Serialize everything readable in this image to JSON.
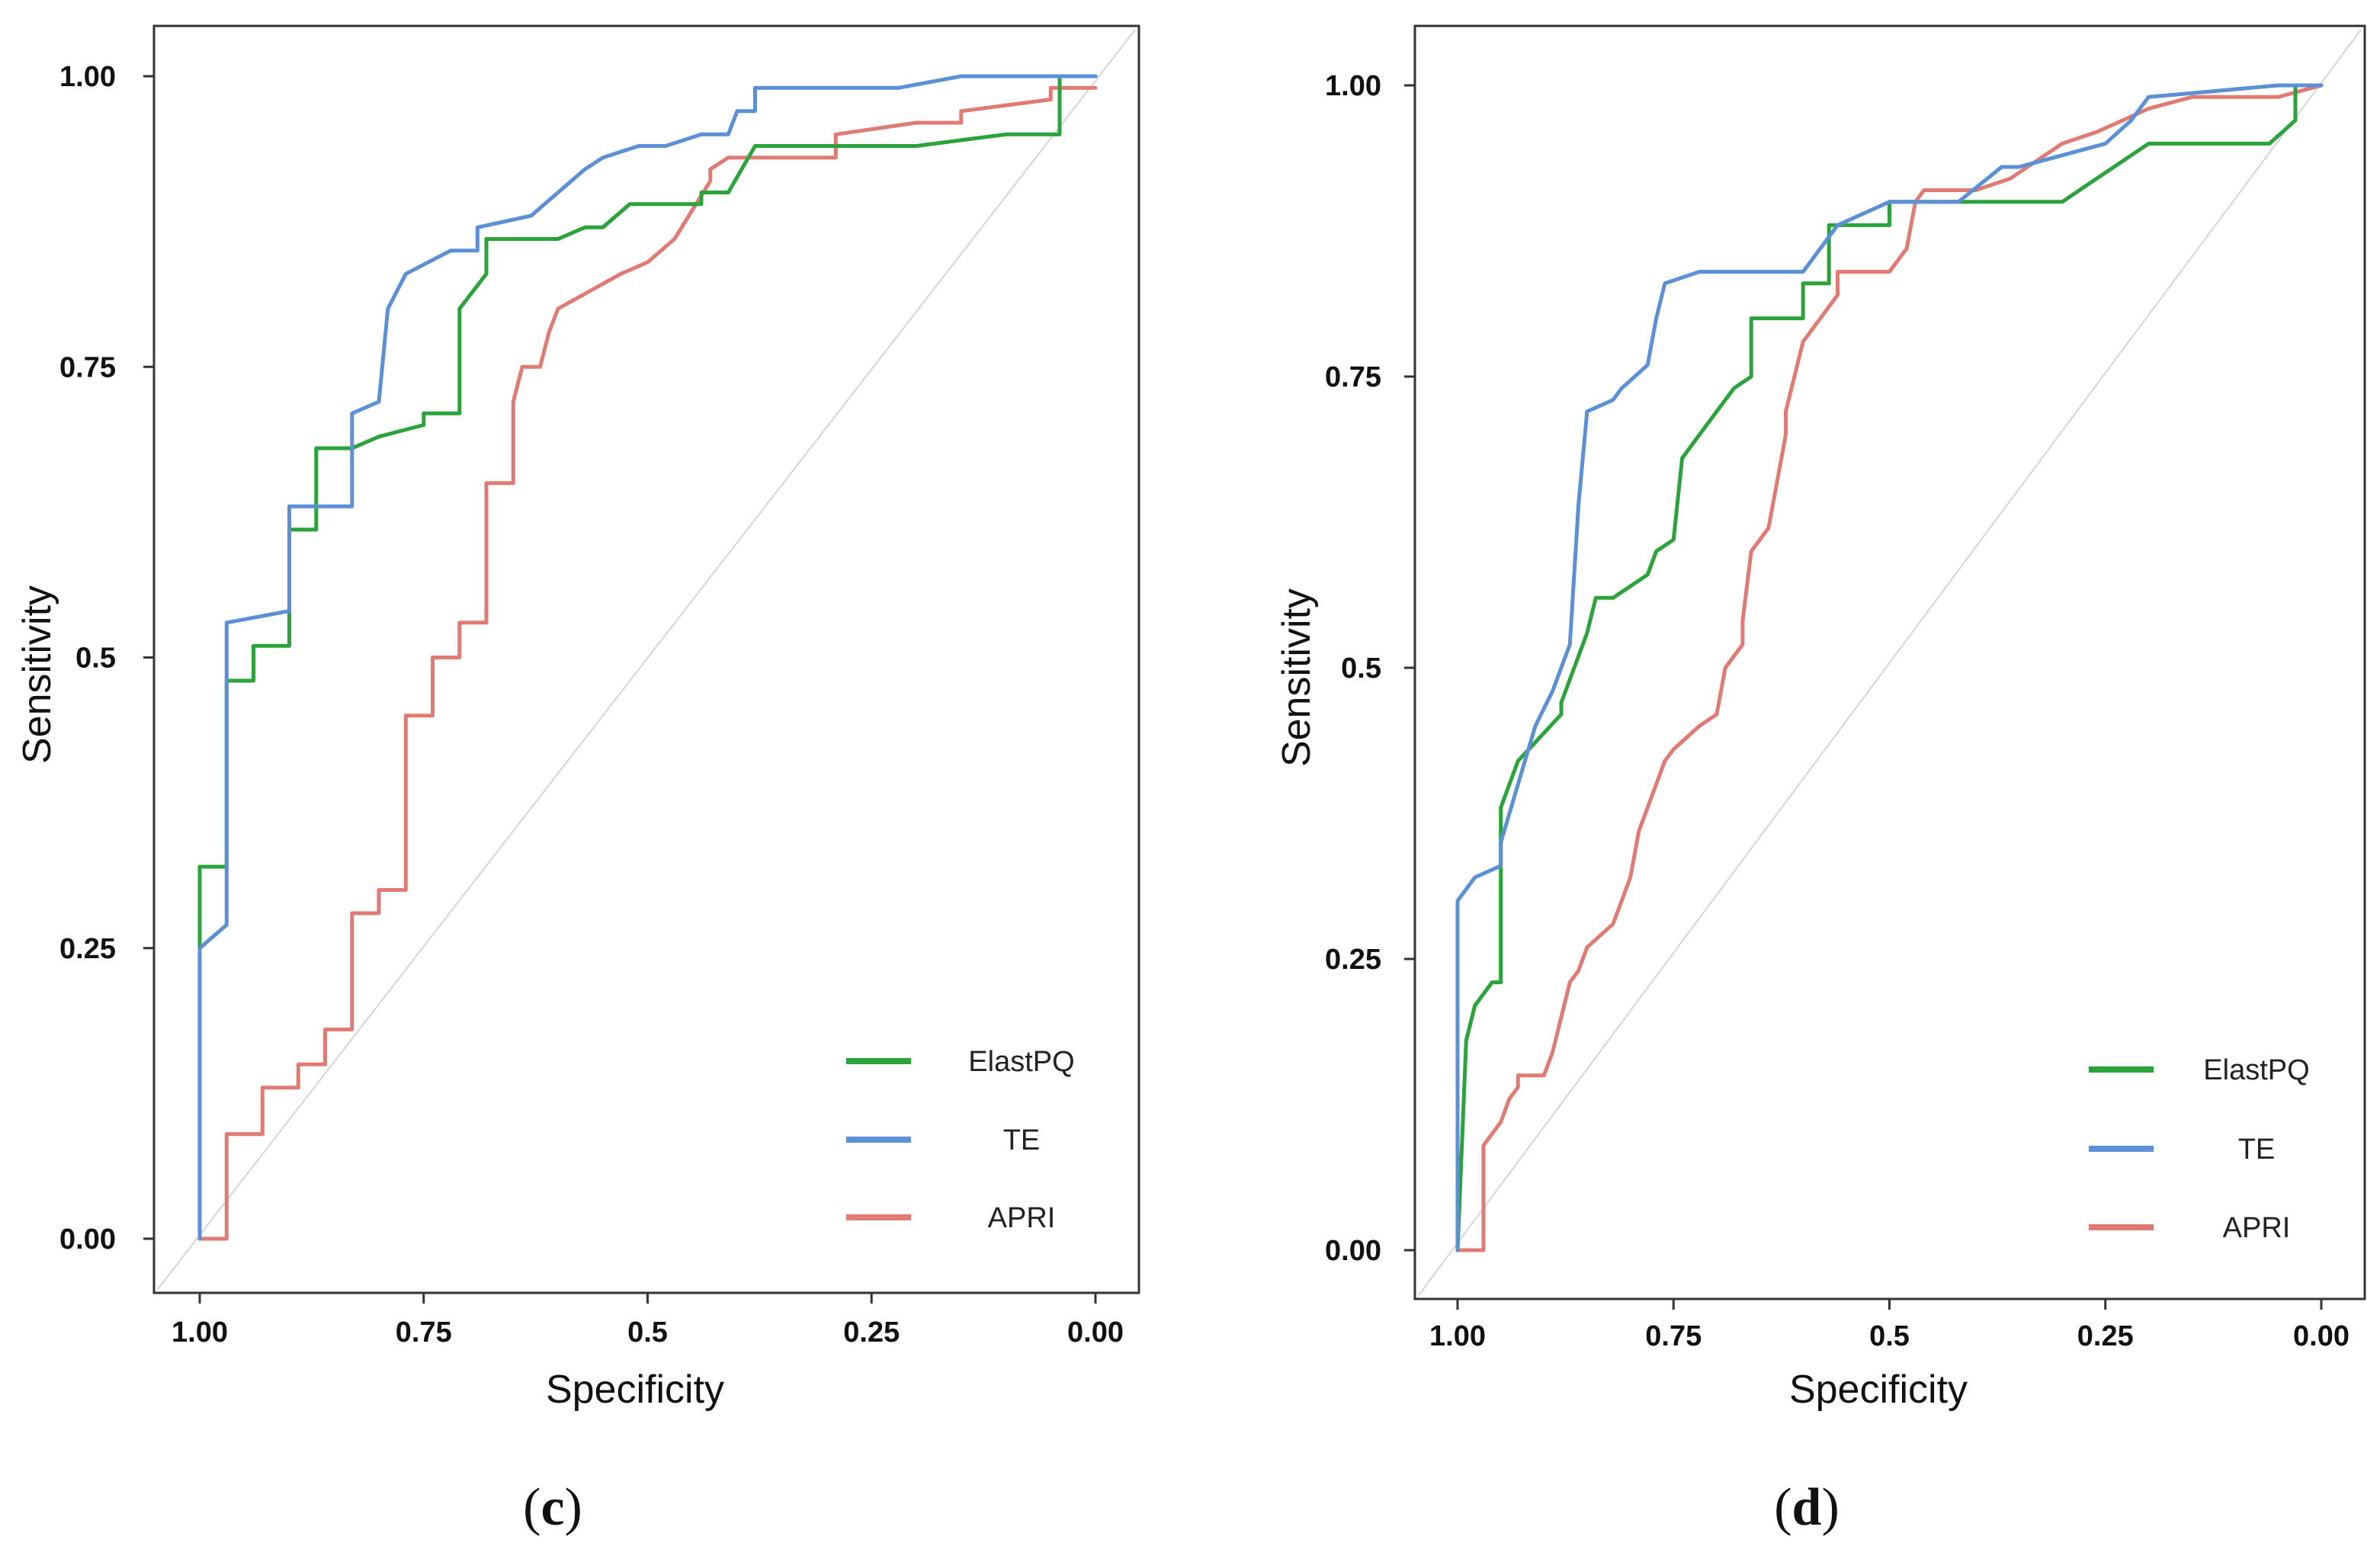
{
  "chart_data": [
    {
      "type": "line",
      "panel_label": "c",
      "xlabel": "Specificity",
      "ylabel": "Sensitivity",
      "x_range": [
        1.0,
        0.0
      ],
      "y_range": [
        0.0,
        1.0
      ],
      "x_ticks": [
        "1.00",
        "0.75",
        "0.5",
        "0.25",
        "0.00"
      ],
      "y_ticks": [
        "0.00",
        "0.25",
        "0.5",
        "0.75",
        "1.00"
      ],
      "legend_position": "bottom-right",
      "reference_line": "diagonal",
      "series": [
        {
          "name": "ElastPQ",
          "color": "#2aa33a",
          "x": [
            1.0,
            1.0,
            0.97,
            0.97,
            0.94,
            0.94,
            0.9,
            0.9,
            0.87,
            0.87,
            0.83,
            0.8,
            0.75,
            0.75,
            0.71,
            0.71,
            0.68,
            0.68,
            0.6,
            0.57,
            0.55,
            0.52,
            0.48,
            0.44,
            0.44,
            0.41,
            0.38,
            0.38,
            0.2,
            0.1,
            0.04,
            0.04,
            0.0
          ],
          "y": [
            0.0,
            0.32,
            0.32,
            0.48,
            0.48,
            0.51,
            0.51,
            0.61,
            0.61,
            0.68,
            0.68,
            0.69,
            0.7,
            0.71,
            0.71,
            0.8,
            0.83,
            0.86,
            0.86,
            0.87,
            0.87,
            0.89,
            0.89,
            0.89,
            0.9,
            0.9,
            0.94,
            0.94,
            0.94,
            0.95,
            0.95,
            1.0,
            1.0
          ]
        },
        {
          "name": "TE",
          "color": "#5b8fd6",
          "x": [
            1.0,
            1.0,
            0.97,
            0.97,
            0.9,
            0.9,
            0.83,
            0.83,
            0.8,
            0.79,
            0.77,
            0.72,
            0.69,
            0.69,
            0.63,
            0.6,
            0.57,
            0.55,
            0.51,
            0.48,
            0.48,
            0.44,
            0.41,
            0.4,
            0.38,
            0.38,
            0.22,
            0.15,
            0.1,
            0.0
          ],
          "y": [
            0.0,
            0.25,
            0.27,
            0.53,
            0.54,
            0.63,
            0.63,
            0.71,
            0.72,
            0.8,
            0.83,
            0.85,
            0.85,
            0.87,
            0.88,
            0.9,
            0.92,
            0.93,
            0.94,
            0.94,
            0.94,
            0.95,
            0.95,
            0.97,
            0.97,
            0.99,
            0.99,
            1.0,
            1.0,
            1.0
          ]
        },
        {
          "name": "APRI",
          "color": "#e07b74",
          "x": [
            1.0,
            0.97,
            0.97,
            0.93,
            0.93,
            0.89,
            0.89,
            0.86,
            0.86,
            0.83,
            0.83,
            0.8,
            0.8,
            0.77,
            0.77,
            0.74,
            0.74,
            0.71,
            0.71,
            0.68,
            0.68,
            0.65,
            0.65,
            0.64,
            0.62,
            0.61,
            0.6,
            0.6,
            0.53,
            0.53,
            0.5,
            0.47,
            0.47,
            0.43,
            0.43,
            0.41,
            0.39,
            0.29,
            0.29,
            0.2,
            0.15,
            0.15,
            0.05,
            0.05,
            0.0
          ],
          "y": [
            0.0,
            0.0,
            0.09,
            0.09,
            0.13,
            0.13,
            0.15,
            0.15,
            0.18,
            0.18,
            0.28,
            0.28,
            0.3,
            0.3,
            0.45,
            0.45,
            0.5,
            0.5,
            0.53,
            0.53,
            0.65,
            0.65,
            0.72,
            0.75,
            0.75,
            0.78,
            0.8,
            0.8,
            0.83,
            0.83,
            0.84,
            0.86,
            0.86,
            0.91,
            0.92,
            0.93,
            0.93,
            0.93,
            0.95,
            0.96,
            0.96,
            0.97,
            0.98,
            0.99,
            0.99
          ]
        }
      ]
    },
    {
      "type": "line",
      "panel_label": "d",
      "xlabel": "Specificity",
      "ylabel": "Sensitivity",
      "x_range": [
        1.0,
        0.0
      ],
      "y_range": [
        0.0,
        1.0
      ],
      "x_ticks": [
        "1.00",
        "0.75",
        "0.5",
        "0.25",
        "0.00"
      ],
      "y_ticks": [
        "0.00",
        "0.25",
        "0.5",
        "0.75",
        "1.00"
      ],
      "legend_position": "bottom-right",
      "reference_line": "diagonal",
      "series": [
        {
          "name": "ElastPQ",
          "color": "#2aa33a",
          "x": [
            1.0,
            0.99,
            0.98,
            0.96,
            0.95,
            0.95,
            0.93,
            0.93,
            0.88,
            0.88,
            0.85,
            0.84,
            0.82,
            0.78,
            0.77,
            0.75,
            0.74,
            0.72,
            0.7,
            0.68,
            0.66,
            0.66,
            0.62,
            0.6,
            0.6,
            0.57,
            0.57,
            0.5,
            0.5,
            0.4,
            0.3,
            0.26,
            0.24,
            0.2,
            0.06,
            0.03,
            0.03,
            0.0
          ],
          "y": [
            0.0,
            0.18,
            0.21,
            0.23,
            0.23,
            0.38,
            0.42,
            0.42,
            0.46,
            0.47,
            0.53,
            0.56,
            0.56,
            0.58,
            0.6,
            0.61,
            0.68,
            0.7,
            0.72,
            0.74,
            0.75,
            0.8,
            0.8,
            0.8,
            0.83,
            0.83,
            0.88,
            0.88,
            0.9,
            0.9,
            0.9,
            0.92,
            0.93,
            0.95,
            0.95,
            0.97,
            1.0,
            1.0
          ]
        },
        {
          "name": "TE",
          "color": "#5b8fd6",
          "x": [
            1.0,
            1.0,
            0.98,
            0.95,
            0.95,
            0.93,
            0.91,
            0.89,
            0.87,
            0.86,
            0.85,
            0.82,
            0.81,
            0.78,
            0.77,
            0.76,
            0.72,
            0.6,
            0.56,
            0.5,
            0.42,
            0.37,
            0.35,
            0.25,
            0.22,
            0.2,
            0.05,
            0.0
          ],
          "y": [
            0.0,
            0.3,
            0.32,
            0.33,
            0.35,
            0.4,
            0.45,
            0.48,
            0.52,
            0.64,
            0.72,
            0.73,
            0.74,
            0.76,
            0.8,
            0.83,
            0.84,
            0.84,
            0.88,
            0.9,
            0.9,
            0.93,
            0.93,
            0.95,
            0.97,
            0.99,
            1.0,
            1.0
          ]
        },
        {
          "name": "APRI",
          "color": "#e07b74",
          "x": [
            1.0,
            0.97,
            0.97,
            0.95,
            0.94,
            0.93,
            0.93,
            0.9,
            0.89,
            0.88,
            0.87,
            0.86,
            0.85,
            0.82,
            0.81,
            0.8,
            0.79,
            0.77,
            0.76,
            0.75,
            0.72,
            0.7,
            0.69,
            0.67,
            0.67,
            0.66,
            0.64,
            0.62,
            0.62,
            0.6,
            0.58,
            0.56,
            0.56,
            0.5,
            0.48,
            0.47,
            0.46,
            0.4,
            0.36,
            0.32,
            0.3,
            0.26,
            0.2,
            0.15,
            0.05,
            0.0
          ],
          "y": [
            0.0,
            0.0,
            0.09,
            0.11,
            0.13,
            0.14,
            0.15,
            0.15,
            0.17,
            0.2,
            0.23,
            0.24,
            0.26,
            0.28,
            0.3,
            0.32,
            0.36,
            0.4,
            0.42,
            0.43,
            0.45,
            0.46,
            0.5,
            0.52,
            0.54,
            0.6,
            0.62,
            0.7,
            0.72,
            0.78,
            0.8,
            0.82,
            0.84,
            0.84,
            0.86,
            0.9,
            0.91,
            0.91,
            0.92,
            0.94,
            0.95,
            0.96,
            0.98,
            0.99,
            0.99,
            1.0
          ]
        }
      ]
    }
  ]
}
